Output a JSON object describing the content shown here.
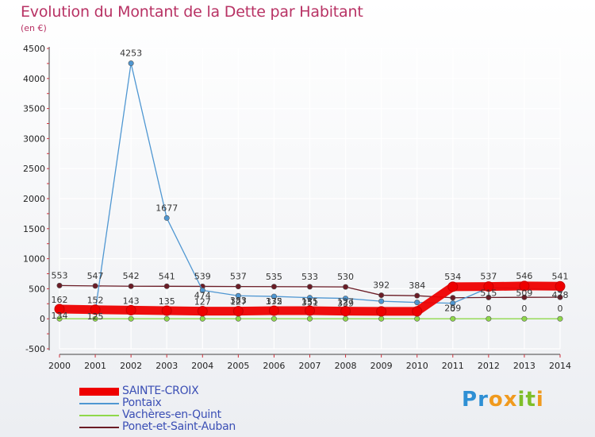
{
  "header": {
    "title": "Evolution du Montant de la Dette par Habitant",
    "subtitle": "(en €)"
  },
  "logo": {
    "text": "Proxiti",
    "letters": [
      "P",
      "r",
      "o",
      "x",
      "i",
      "t",
      "i"
    ],
    "colors": [
      "#2e8fd4",
      "#2e8fd4",
      "#f09a1e",
      "#f09a1e",
      "#7fbf2a",
      "#7fbf2a",
      "#f09a1e"
    ]
  },
  "colors": {
    "title": "#b83264",
    "axis_text": "#222222",
    "grid": "#ffffff",
    "axis_tick": "#d0313c"
  },
  "chart_data": {
    "type": "line",
    "title": "Evolution du Montant de la Dette par Habitant",
    "ylabel": "(en €)",
    "xlabel": "",
    "x": [
      "2000",
      "2001",
      "2002",
      "2003",
      "2004",
      "2005",
      "2006",
      "2007",
      "2008",
      "2009",
      "2010",
      "2011",
      "2012",
      "2013",
      "2014"
    ],
    "ylim": [
      -500,
      4500
    ],
    "yticks": [
      -500,
      0,
      500,
      1000,
      1500,
      2000,
      2500,
      3000,
      3500,
      4000,
      4500
    ],
    "grid": true,
    "legend_position": "bottom-left",
    "series": [
      {
        "name": "SAINTE-CROIX",
        "color": "#ee0000",
        "style": "thick",
        "values": [
          162,
          152,
          143,
          135,
          127,
          127,
          135,
          135,
          127,
          123,
          124,
          534,
          537,
          546,
          541
        ],
        "labels": [
          "162",
          "152",
          "143",
          "135",
          "127",
          "127",
          "135",
          "135",
          "127",
          "",
          "",
          "534",
          "537",
          "546",
          "541"
        ]
      },
      {
        "name": "Pontaix",
        "color": "#4f97d2",
        "style": "thin",
        "values": [
          134,
          125,
          4253,
          1677,
          474,
          383,
          372,
          351,
          339,
          292,
          272,
          259,
          515,
          509,
          478
        ],
        "labels": [
          "134",
          "125",
          "4253",
          "1677",
          "474",
          "383",
          "372",
          "351",
          "339",
          "",
          "",
          "259",
          "515",
          "509",
          "478"
        ]
      },
      {
        "name": "Vachères-en-Quint",
        "color": "#8fd84a",
        "style": "thin",
        "values": [
          0,
          0,
          0,
          0,
          0,
          0,
          0,
          0,
          0,
          0,
          0,
          0,
          0,
          0,
          0
        ],
        "labels": [
          "",
          "",
          "",
          "",
          "",
          "",
          "",
          "",
          "",
          "",
          "",
          "0",
          "0",
          "0",
          "0"
        ]
      },
      {
        "name": "Ponet-et-Saint-Auban",
        "color": "#6b1c26",
        "style": "thin",
        "values": [
          553,
          547,
          542,
          541,
          539,
          537,
          535,
          533,
          530,
          392,
          384,
          350,
          355,
          357,
          358
        ],
        "labels": [
          "553",
          "547",
          "542",
          "541",
          "539",
          "537",
          "535",
          "533",
          "530",
          "392",
          "384",
          "",
          "",
          "",
          ""
        ]
      }
    ]
  }
}
